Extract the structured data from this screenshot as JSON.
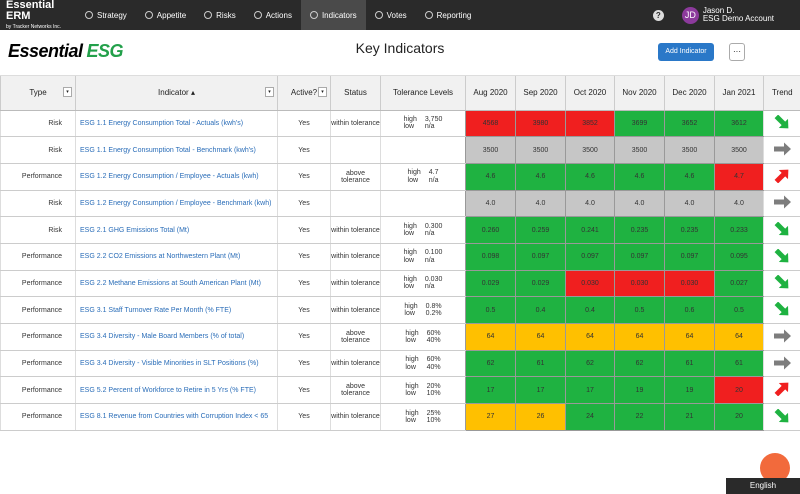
{
  "nav": {
    "brand": "Essential ERM",
    "brand_sub": "by Tracker Networks Inc.",
    "items": [
      "Strategy",
      "Appetite",
      "Risks",
      "Actions",
      "Indicators",
      "Votes",
      "Reporting"
    ],
    "active": "Indicators",
    "user": {
      "initials": "JD",
      "name": "Jason D.",
      "account": "ESG Demo Account"
    }
  },
  "header": {
    "logo": [
      "Essential",
      "ESG"
    ],
    "title": "Key Indicators",
    "button": "Add Indicator",
    "more": "···"
  },
  "table": {
    "columns": [
      "Type",
      "Indicator",
      "Active?",
      "Status",
      "Tolerance Levels",
      "Aug 2020",
      "Sep 2020",
      "Oct 2020",
      "Nov 2020",
      "Dec 2020",
      "Jan 2021",
      "Trend"
    ],
    "rows": [
      {
        "type": "Risk",
        "indicator": "ESG 1.1 Energy Consumption Total - Actuals (kwh's)",
        "active": "Yes",
        "status": "within tolerance",
        "tolerance": {
          "high_label": "high",
          "high": "3,750",
          "low_label": "low",
          "low": "n/a"
        },
        "cells": [
          {
            "text": "4568",
            "color": "red"
          },
          {
            "text": "3980",
            "color": "red"
          },
          {
            "text": "3852",
            "color": "red"
          },
          {
            "text": "3699",
            "color": "green"
          },
          {
            "text": "3652",
            "color": "green"
          },
          {
            "text": "3612",
            "color": "green"
          }
        ],
        "trend": "down"
      },
      {
        "type": "Risk",
        "indicator": "ESG 1.1 Energy Consumption Total - Benchmark (kwh's)",
        "active": "Yes",
        "cells": [
          {
            "text": "3500",
            "color": "gray"
          },
          {
            "text": "3500",
            "color": "gray"
          },
          {
            "text": "3500",
            "color": "gray"
          },
          {
            "text": "3500",
            "color": "gray"
          },
          {
            "text": "3500",
            "color": "gray"
          },
          {
            "text": "3500",
            "color": "gray"
          }
        ],
        "trend": "flat"
      },
      {
        "type": "Performance",
        "indicator": "ESG 1.2 Energy Consumption / Employee - Actuals (kwh)",
        "active": "Yes",
        "status": "above tolerance",
        "tolerance": {
          "high_label": "high",
          "high": "4.7",
          "low_label": "low",
          "low": "n/a"
        },
        "cells": [
          {
            "text": "4.6",
            "color": "green"
          },
          {
            "text": "4.6",
            "color": "green"
          },
          {
            "text": "4.6",
            "color": "green"
          },
          {
            "text": "4.6",
            "color": "green"
          },
          {
            "text": "4.6",
            "color": "green"
          },
          {
            "text": "4.7",
            "color": "red"
          }
        ],
        "trend": "up"
      },
      {
        "type": "Risk",
        "indicator": "ESG 1.2 Energy Consumption / Employee - Benchmark (kwh)",
        "active": "Yes",
        "cells": [
          {
            "text": "4.0",
            "color": "gray"
          },
          {
            "text": "4.0",
            "color": "gray"
          },
          {
            "text": "4.0",
            "color": "gray"
          },
          {
            "text": "4.0",
            "color": "gray"
          },
          {
            "text": "4.0",
            "color": "gray"
          },
          {
            "text": "4.0",
            "color": "gray"
          }
        ],
        "trend": "flat"
      },
      {
        "type": "Risk",
        "indicator": "ESG 2.1 GHG Emissions Total (Mt)",
        "active": "Yes",
        "status": "within tolerance",
        "tolerance": {
          "high_label": "high",
          "high": "0.300",
          "low_label": "low",
          "low": "n/a"
        },
        "cells": [
          {
            "text": "0.260",
            "color": "green"
          },
          {
            "text": "0.259",
            "color": "green"
          },
          {
            "text": "0.241",
            "color": "green"
          },
          {
            "text": "0.235",
            "color": "green"
          },
          {
            "text": "0.235",
            "color": "green"
          },
          {
            "text": "0.233",
            "color": "green"
          }
        ],
        "trend": "down"
      },
      {
        "type": "Performance",
        "indicator": "ESG 2.2 CO2 Emissions at Northwestern Plant (Mt)",
        "active": "Yes",
        "status": "within tolerance",
        "tolerance": {
          "high_label": "high",
          "high": "0.100",
          "low_label": "low",
          "low": "n/a"
        },
        "cells": [
          {
            "text": "0.098",
            "color": "green"
          },
          {
            "text": "0.097",
            "color": "green"
          },
          {
            "text": "0.097",
            "color": "green"
          },
          {
            "text": "0.097",
            "color": "green"
          },
          {
            "text": "0.097",
            "color": "green"
          },
          {
            "text": "0.095",
            "color": "green"
          }
        ],
        "trend": "down"
      },
      {
        "type": "Performance",
        "indicator": "ESG 2.2 Methane Emissions at South American Plant (Mt)",
        "active": "Yes",
        "status": "within tolerance",
        "tolerance": {
          "high_label": "high",
          "high": "0.030",
          "low_label": "low",
          "low": "n/a"
        },
        "cells": [
          {
            "text": "0.029",
            "color": "green"
          },
          {
            "text": "0.029",
            "color": "green"
          },
          {
            "text": "0.030",
            "color": "red"
          },
          {
            "text": "0.030",
            "color": "red"
          },
          {
            "text": "0.030",
            "color": "red"
          },
          {
            "text": "0.027",
            "color": "green"
          }
        ],
        "trend": "down"
      },
      {
        "type": "Performance",
        "indicator": "ESG 3.1 Staff Turnover Rate Per Month (% FTE)",
        "active": "Yes",
        "status": "within tolerance",
        "tolerance": {
          "high_label": "high",
          "high": "0.8%",
          "low_label": "low",
          "low": "0.2%"
        },
        "cells": [
          {
            "text": "0.5",
            "color": "green"
          },
          {
            "text": "0.4",
            "color": "green"
          },
          {
            "text": "0.4",
            "color": "green"
          },
          {
            "text": "0.5",
            "color": "green"
          },
          {
            "text": "0.6",
            "color": "green"
          },
          {
            "text": "0.5",
            "color": "green"
          }
        ],
        "trend": "down"
      },
      {
        "type": "Performance",
        "indicator": "ESG 3.4 Diversity - Male Board Members (% of total)",
        "active": "Yes",
        "status": "above tolerance",
        "tolerance": {
          "high_label": "high",
          "high": "60%",
          "low_label": "low",
          "low": "40%"
        },
        "cells": [
          {
            "text": "64",
            "color": "yellow"
          },
          {
            "text": "64",
            "color": "yellow"
          },
          {
            "text": "64",
            "color": "yellow"
          },
          {
            "text": "64",
            "color": "yellow"
          },
          {
            "text": "64",
            "color": "yellow"
          },
          {
            "text": "64",
            "color": "yellow"
          }
        ],
        "trend": "flat"
      },
      {
        "type": "Performance",
        "indicator": "ESG 3.4 Diversity - Visible Minorities in SLT Positions (%)",
        "active": "Yes",
        "status": "within tolerance",
        "tolerance": {
          "high_label": "high",
          "high": "60%",
          "low_label": "low",
          "low": "40%"
        },
        "cells": [
          {
            "text": "62",
            "color": "green"
          },
          {
            "text": "61",
            "color": "green"
          },
          {
            "text": "62",
            "color": "green"
          },
          {
            "text": "62",
            "color": "green"
          },
          {
            "text": "61",
            "color": "green"
          },
          {
            "text": "61",
            "color": "green"
          }
        ],
        "trend": "flat"
      },
      {
        "type": "Performance",
        "indicator": "ESG 5.2 Percent of Workforce to Retire in 5 Yrs (% FTE)",
        "active": "Yes",
        "status": "above tolerance",
        "tolerance": {
          "high_label": "high",
          "high": "20%",
          "low_label": "low",
          "low": "10%"
        },
        "cells": [
          {
            "text": "17",
            "color": "green"
          },
          {
            "text": "17",
            "color": "green"
          },
          {
            "text": "17",
            "color": "green"
          },
          {
            "text": "19",
            "color": "green"
          },
          {
            "text": "19",
            "color": "green"
          },
          {
            "text": "20",
            "color": "red"
          }
        ],
        "trend": "up"
      },
      {
        "type": "Performance",
        "indicator": "ESG 8.1 Revenue from Countries with Corruption Index < 65",
        "active": "Yes",
        "status": "within tolerance",
        "tolerance": {
          "high_label": "high",
          "high": "25%",
          "low_label": "low",
          "low": "10%"
        },
        "cells": [
          {
            "text": "27",
            "color": "yellow"
          },
          {
            "text": "26",
            "color": "yellow"
          },
          {
            "text": "24",
            "color": "green"
          },
          {
            "text": "22",
            "color": "green"
          },
          {
            "text": "21",
            "color": "green"
          },
          {
            "text": "20",
            "color": "green"
          }
        ],
        "trend": "down"
      }
    ]
  },
  "footer": {
    "language": "English"
  }
}
